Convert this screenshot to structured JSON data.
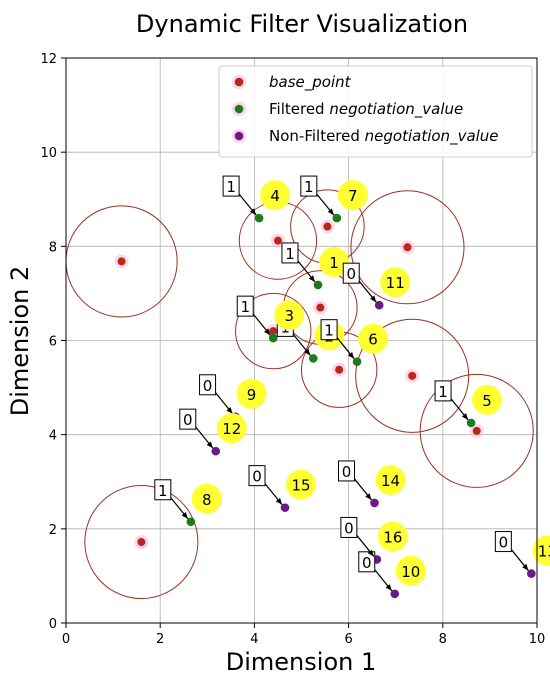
{
  "chart_data": {
    "type": "scatter",
    "title": "Dynamic Filter Visualization",
    "xlabel": "Dimension 1",
    "ylabel": "Dimension 2",
    "xlim": [
      0,
      10
    ],
    "ylim": [
      0,
      12
    ],
    "xticks": [
      0,
      2,
      4,
      6,
      8,
      10
    ],
    "yticks": [
      0,
      2,
      4,
      6,
      8,
      10,
      12
    ],
    "grid": true,
    "legend_position": "top-right",
    "legend": [
      {
        "key": "base",
        "label_plain": "",
        "label_italic": "base_point",
        "color": "#b5281a"
      },
      {
        "key": "filtered",
        "label_plain": "Filtered ",
        "label_italic": "negotiation_value",
        "color": "#1f7a1f"
      },
      {
        "key": "nonfiltered",
        "label_plain": "Non-Filtered ",
        "label_italic": "negotiation_value",
        "color": "#6a1a8a"
      }
    ],
    "colors": {
      "base": "#b5281a",
      "filtered": "#1f7a1f",
      "nonfiltered": "#6a1a8a",
      "circle": "#9b3020",
      "badge": "#ffff33",
      "halo": "#ffb3d9"
    },
    "base_points": [
      {
        "x": 1.18,
        "y": 7.68,
        "r": 1.18
      },
      {
        "x": 4.5,
        "y": 8.12,
        "r": 0.82
      },
      {
        "x": 5.55,
        "y": 8.42,
        "r": 0.78
      },
      {
        "x": 7.25,
        "y": 7.98,
        "r": 1.2
      },
      {
        "x": 5.4,
        "y": 6.7,
        "r": 0.78
      },
      {
        "x": 4.4,
        "y": 6.2,
        "r": 0.8
      },
      {
        "x": 5.8,
        "y": 5.38,
        "r": 0.8
      },
      {
        "x": 7.35,
        "y": 5.25,
        "r": 1.2
      },
      {
        "x": 8.72,
        "y": 4.08,
        "r": 1.2
      },
      {
        "x": 1.6,
        "y": 1.72,
        "r": 1.2
      }
    ],
    "negotiation_points": [
      {
        "id": "1",
        "x": 5.35,
        "y": 7.18,
        "flag": "1",
        "filtered": true
      },
      {
        "id": "2",
        "x": 5.25,
        "y": 5.62,
        "flag": "1",
        "filtered": true
      },
      {
        "id": "3",
        "x": 4.4,
        "y": 6.05,
        "flag": "1",
        "filtered": true
      },
      {
        "id": "4",
        "x": 4.1,
        "y": 8.6,
        "flag": "1",
        "filtered": true
      },
      {
        "id": "5",
        "x": 8.6,
        "y": 4.25,
        "flag": "1",
        "filtered": true
      },
      {
        "id": "6",
        "x": 6.18,
        "y": 5.55,
        "flag": "1",
        "filtered": true
      },
      {
        "id": "7",
        "x": 5.75,
        "y": 8.6,
        "flag": "1",
        "filtered": true
      },
      {
        "id": "8",
        "x": 2.65,
        "y": 2.15,
        "flag": "1",
        "filtered": true
      },
      {
        "id": "9",
        "x": 3.6,
        "y": 4.38,
        "flag": "0",
        "filtered": false
      },
      {
        "id": "10",
        "x": 6.98,
        "y": 0.62,
        "flag": "0",
        "filtered": false
      },
      {
        "id": "11",
        "x": 6.65,
        "y": 6.75,
        "flag": "0",
        "filtered": false
      },
      {
        "id": "12",
        "x": 3.18,
        "y": 3.65,
        "flag": "0",
        "filtered": false
      },
      {
        "id": "13",
        "x": 9.88,
        "y": 1.05,
        "flag": "0",
        "filtered": false
      },
      {
        "id": "14",
        "x": 6.55,
        "y": 2.55,
        "flag": "0",
        "filtered": false
      },
      {
        "id": "15",
        "x": 4.65,
        "y": 2.45,
        "flag": "0",
        "filtered": false
      },
      {
        "id": "16",
        "x": 6.6,
        "y": 1.35,
        "flag": "0",
        "filtered": false
      }
    ]
  }
}
